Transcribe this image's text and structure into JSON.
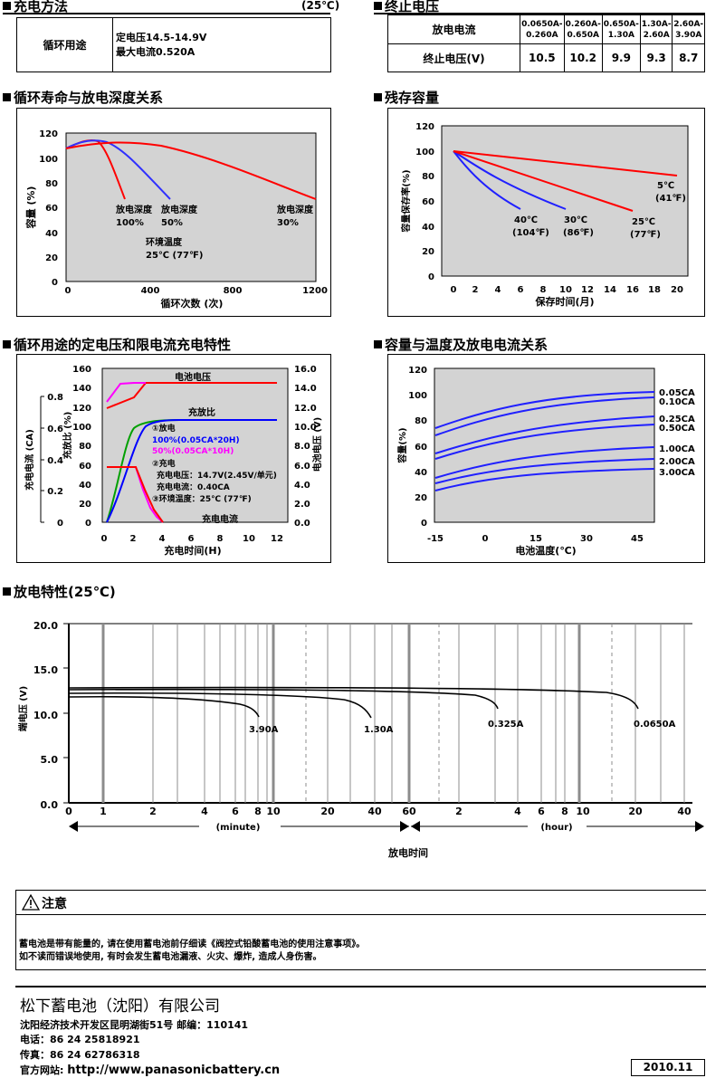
{
  "charge": {
    "title": "充电方法",
    "temp": "(25℃)",
    "label": "循环用途",
    "line1": "定电压14.5-14.9V",
    "line2": "最大电流0.520A"
  },
  "cutoff": {
    "title": "终止电压",
    "row1_label": "放电电流",
    "row2_label": "终止电压(V)",
    "currents": [
      [
        "0.0650A-",
        "0.260A"
      ],
      [
        "0.260A-",
        "0.650A"
      ],
      [
        "0.650A-",
        "1.30A"
      ],
      [
        "1.30A-",
        "2.60A"
      ],
      [
        "2.60A-",
        "3.90A"
      ]
    ],
    "voltages": [
      "10.5",
      "10.2",
      "9.9",
      "9.3",
      "8.7"
    ]
  },
  "cycle": {
    "title": "循环寿命与放电深度关系",
    "ylabel": "容量 (%)",
    "xlabel": "循环次数 (次)",
    "yticks": [
      "0",
      "20",
      "40",
      "60",
      "80",
      "100",
      "120"
    ],
    "xticks": [
      "0",
      "400",
      "800",
      "1200"
    ],
    "label100": [
      "放电深度",
      "100%"
    ],
    "label50": [
      "放电深度",
      "50%"
    ],
    "label30": [
      "放电深度",
      "30%"
    ],
    "env": [
      "环境温度",
      "25℃ (77℉)"
    ]
  },
  "residual": {
    "title": "残存容量",
    "ylabel": "容量保存率(%)",
    "xlabel": "保存时间(月)",
    "yticks": [
      "0",
      "20",
      "40",
      "60",
      "80",
      "100",
      "120"
    ],
    "xticks": [
      "0",
      "2",
      "4",
      "6",
      "8",
      "10",
      "12",
      "14",
      "16",
      "18",
      "20"
    ],
    "l40": [
      "40℃",
      "(104℉)"
    ],
    "l30": [
      "30℃",
      "(86℉)"
    ],
    "l25": [
      "25℃",
      "(77℉)"
    ],
    "l5": [
      "5℃",
      "(41℉)"
    ]
  },
  "chg": {
    "title": "循环用途的定电压和限电流充电特性",
    "y1": "充电电流 (CA)",
    "y2": "充放比 (%)",
    "y3": "电池电压 (V)",
    "xlabel": "充电时间(H)",
    "ticks_ca": [
      "0",
      "0.2",
      "0.4",
      "0.6",
      "0.8"
    ],
    "ticks_pct": [
      "0",
      "20",
      "40",
      "60",
      "80",
      "100",
      "120",
      "140",
      "160"
    ],
    "ticks_v": [
      "0.0",
      "2.0",
      "4.0",
      "6.0",
      "8.0",
      "10.0",
      "12.0",
      "14.0",
      "16.0"
    ],
    "xticks": [
      "0",
      "2",
      "4",
      "6",
      "8",
      "10",
      "12"
    ],
    "lbl_voltage": "电池电压",
    "lbl_ratio": "充放比",
    "lbl_current": "充电电流",
    "n1": "①放电",
    "n1a": "100%(0.05CA*20H)",
    "n1b": "50%(0.05CA*10H)",
    "n2": "②充电",
    "n2a": "充电电压：14.7V(2.45V/单元)",
    "n2b": "充电电流：0.40CA",
    "n3": "③环境温度：25℃ (77℉)"
  },
  "temp": {
    "title": "容量与温度及放电电流关系",
    "ylabel": "容量(%)",
    "xlabel": "电池温度(℃)",
    "yticks": [
      "0",
      "20",
      "40",
      "60",
      "80",
      "100",
      "120"
    ],
    "xticks": [
      "-15",
      "0",
      "15",
      "30",
      "45"
    ],
    "series": [
      "0.05CA",
      "0.10CA",
      "0.25CA",
      "0.50CA",
      "1.00CA",
      "2.00CA",
      "3.00CA"
    ]
  },
  "dis": {
    "title": "放电特性(25℃)",
    "ylabel": "端电压 (V)",
    "xlabel": "放电时间",
    "yticks": [
      "0.0",
      "5.0",
      "10.0",
      "15.0",
      "20.0"
    ],
    "min_ticks": [
      "1",
      "2",
      "4",
      "6",
      "8",
      "10",
      "20",
      "40",
      "60"
    ],
    "hr_ticks": [
      "2",
      "4",
      "6",
      "8",
      "10",
      "20",
      "40"
    ],
    "zero": "0",
    "minute": "(minute)",
    "hour": "(hour)",
    "curves": [
      "3.90A",
      "1.30A",
      "0.325A",
      "0.0650A"
    ]
  },
  "notice": {
    "title": "注意",
    "line1": "蓄电池是带有能量的, 请在使用蓄电池前仔细读《阀控式铅酸蓄电池的使用注意事项》。",
    "line2": "如不读而错误地使用, 有时会发生蓄电池漏液、火灾、爆炸, 造成人身伤害。"
  },
  "company": {
    "name": "松下蓄电池（沈阳）有限公司",
    "addr": "沈阳经济技术开发区昆明湖街51号 邮编：110141",
    "tel": "电话：86 24 25818921",
    "fax": "传真：86 24 62786318",
    "web_label": "官方网站: ",
    "web": "http://www.panasonicbattery.cn",
    "date": "2010.11"
  },
  "colors": {
    "red": "#ff0000",
    "blue": "#0000ff",
    "green": "#00a000",
    "magenta": "#ff00ff",
    "plot_bg": "#d3d3d3"
  }
}
